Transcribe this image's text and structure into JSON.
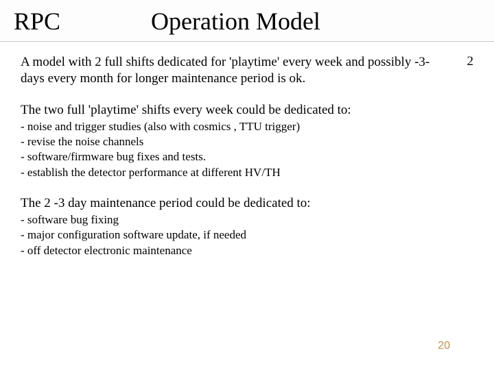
{
  "title": {
    "left": "RPC",
    "right": "Operation Model"
  },
  "intro": {
    "text": "A model with 2 full shifts dedicated for 'playtime' every week  and possibly -3- days every month for longer maintenance period  is ok.",
    "number": "2"
  },
  "section1": {
    "heading": "The two full  'playtime' shifts every week  could be dedicated to:",
    "items": [
      "- noise and trigger studies  (also with cosmics , TTU trigger)",
      "- revise the noise channels",
      "- software/firmware bug fixes and tests.",
      "- establish the detector performance at different HV/TH"
    ]
  },
  "section2": {
    "heading": "The 2 -3 day maintenance  period  could be dedicated to:",
    "items": [
      "- software bug fixing",
      "- major configuration software update, if needed",
      "- off detector electronic maintenance"
    ]
  },
  "pageNumber": "20",
  "colors": {
    "text": "#000000",
    "pageNum": "#c1904b",
    "background": "#ffffff",
    "divider": "#cccccc"
  },
  "typography": {
    "title_fontsize": 36,
    "body_fontsize": 19,
    "bullet_fontsize": 17,
    "pagenum_fontsize": 16,
    "font_family": "Times New Roman"
  }
}
